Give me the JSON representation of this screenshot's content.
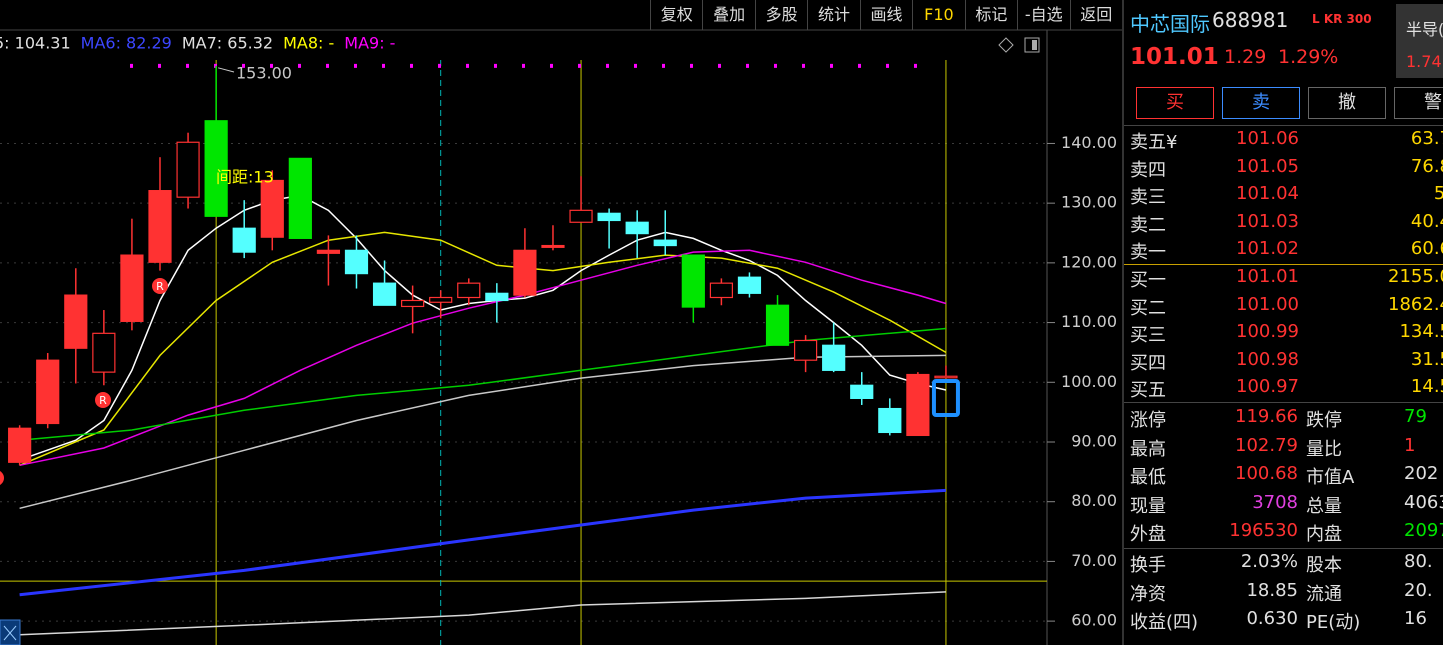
{
  "toolbar": [
    "复权",
    "叠加",
    "多股",
    "统计",
    "画线",
    "F10",
    "标记",
    "-自选",
    "返回"
  ],
  "ma_legend": [
    {
      "text": "5: 104.31",
      "color": "#e0e0e0"
    },
    {
      "text": "MA6: 82.29",
      "color": "#3c46ff"
    },
    {
      "text": "MA7: 65.32",
      "color": "#e0e0e0"
    },
    {
      "text": "MA8: -",
      "color": "#ffff00"
    },
    {
      "text": "MA9: -",
      "color": "#ff00ff"
    }
  ],
  "chart_data": {
    "type": "candlestick",
    "xlim": [
      -0.7,
      36.6
    ],
    "ylim": [
      56,
      159
    ],
    "yticks": [
      {
        "value": 140,
        "label": "140.00"
      },
      {
        "value": 130,
        "label": "130.00"
      },
      {
        "value": 120,
        "label": "120.00"
      },
      {
        "value": 110,
        "label": "110.00"
      },
      {
        "value": 100,
        "label": "100.00"
      },
      {
        "value": 90,
        "label": "90.00"
      },
      {
        "value": 80,
        "label": "80.00"
      },
      {
        "value": 70,
        "label": "70.00"
      },
      {
        "value": 60,
        "label": "60.00"
      }
    ],
    "grid": true,
    "candles": {
      "x": [
        0,
        1,
        2,
        3,
        4,
        5,
        6,
        7,
        8,
        9,
        10,
        11,
        12,
        13,
        14,
        15,
        16,
        17,
        18,
        19,
        20,
        21,
        22,
        23,
        24,
        25,
        26,
        27,
        28,
        29,
        30,
        31,
        32,
        33
      ],
      "open": [
        86.6,
        93.1,
        105.7,
        101.7,
        110.2,
        120.1,
        131.0,
        143.8,
        125.8,
        124.3,
        137.5,
        121.6,
        122.1,
        116.6,
        112.7,
        113.4,
        114.2,
        114.9,
        114.6,
        122.6,
        126.8,
        128.3,
        126.8,
        123.8,
        121.3,
        114.2,
        117.6,
        112.9,
        103.7,
        106.2,
        99.5,
        95.6,
        91.1,
        100.8
      ],
      "high": [
        92.8,
        104.9,
        119.1,
        112.1,
        127.4,
        137.7,
        141.8,
        153.0,
        130.5,
        135.5,
        137.5,
        124.6,
        124.6,
        120.4,
        116.2,
        115.4,
        117.4,
        116.6,
        125.8,
        126.3,
        134.5,
        129.1,
        128.8,
        128.8,
        121.3,
        117.4,
        118.4,
        114.6,
        107.9,
        110.0,
        101.7,
        97.3,
        101.7,
        102.79
      ],
      "low": [
        86.1,
        92.3,
        99.8,
        99.5,
        108.7,
        118.7,
        129.1,
        127.8,
        120.8,
        122.1,
        124.1,
        116.2,
        115.7,
        112.9,
        108.2,
        110.7,
        112.9,
        110.0,
        114.2,
        122.1,
        126.8,
        122.4,
        120.8,
        121.3,
        110.0,
        112.9,
        114.2,
        106.2,
        101.7,
        101.7,
        96.2,
        91.1,
        91.1,
        100.68
      ],
      "close": [
        92.3,
        103.7,
        114.6,
        108.2,
        121.3,
        132.1,
        140.2,
        127.8,
        121.8,
        133.8,
        124.1,
        122.1,
        118.2,
        112.9,
        113.7,
        114.2,
        116.6,
        113.7,
        122.1,
        122.9,
        128.8,
        127.1,
        124.9,
        122.9,
        112.6,
        116.6,
        114.9,
        106.2,
        107.0,
        102.0,
        97.3,
        91.6,
        101.3,
        101.01
      ],
      "color": [
        "#ff3232",
        "#ff3232",
        "#ff3232",
        "#ff3232",
        "#ff3232",
        "#ff3232",
        "#ff3232",
        "#00e600",
        "#54ffff",
        "#ff3232",
        "#00e600",
        "#ff3232",
        "#54ffff",
        "#54ffff",
        "#ff3232",
        "#ff3232",
        "#ff3232",
        "#54ffff",
        "#ff3232",
        "#ff3232",
        "#ff3232",
        "#54ffff",
        "#54ffff",
        "#54ffff",
        "#00e600",
        "#ff3232",
        "#54ffff",
        "#00e600",
        "#ff3232",
        "#54ffff",
        "#54ffff",
        "#54ffff",
        "#ff3232",
        "#ff3232"
      ],
      "hollow": [
        false,
        false,
        false,
        true,
        false,
        false,
        true,
        false,
        false,
        false,
        false,
        false,
        false,
        false,
        true,
        true,
        true,
        false,
        false,
        false,
        true,
        false,
        false,
        false,
        false,
        true,
        false,
        false,
        true,
        false,
        false,
        false,
        false,
        true
      ]
    },
    "lines": [
      {
        "color": "#ffffff",
        "x": [
          0,
          2,
          3,
          4,
          5,
          6,
          7,
          8,
          9,
          10,
          11,
          12,
          13,
          14,
          15,
          16,
          17,
          18,
          19,
          20,
          21,
          22,
          23,
          24,
          25,
          26,
          27,
          28,
          29,
          30,
          31,
          32,
          33
        ],
        "values": [
          87.0,
          90.3,
          93.6,
          102.0,
          113.7,
          122.1,
          125.8,
          128.8,
          130.5,
          131.3,
          128.8,
          124.1,
          118.7,
          114.6,
          112.1,
          113.2,
          113.7,
          114.1,
          115.4,
          118.7,
          121.3,
          123.8,
          125.1,
          124.1,
          122.1,
          120.4,
          117.9,
          113.7,
          110.0,
          106.2,
          101.2,
          99.8,
          98.7
        ]
      },
      {
        "color": "#e6e600",
        "x": [
          0,
          3,
          5,
          7,
          9,
          11,
          13,
          15,
          17,
          19,
          21,
          23,
          25,
          27,
          29,
          31,
          33
        ],
        "values": [
          86.1,
          92.0,
          104.5,
          113.7,
          120.1,
          123.8,
          125.1,
          123.8,
          119.6,
          118.7,
          120.1,
          121.3,
          120.8,
          119.1,
          115.1,
          110.4,
          105.0
        ]
      },
      {
        "color": "#e600e6",
        "x": [
          0,
          3,
          6,
          8,
          10,
          12,
          14,
          16,
          18,
          20,
          22,
          24,
          26,
          28,
          30,
          32,
          33
        ],
        "values": [
          86.1,
          89.0,
          94.5,
          97.3,
          102.0,
          106.2,
          109.9,
          112.4,
          114.6,
          117.1,
          119.6,
          121.8,
          122.1,
          120.1,
          117.1,
          114.6,
          113.2
        ]
      },
      {
        "color": "#00cc00",
        "x": [
          0,
          4,
          8,
          12,
          16,
          20,
          24,
          28,
          33
        ],
        "values": [
          90.3,
          92.0,
          95.3,
          97.8,
          99.5,
          102.0,
          104.5,
          107.0,
          109.0
        ]
      },
      {
        "color": "#c8c8c8",
        "x": [
          0,
          4,
          8,
          12,
          16,
          20,
          24,
          28,
          33
        ],
        "values": [
          78.9,
          83.6,
          88.6,
          93.6,
          97.8,
          100.7,
          102.8,
          104.2,
          104.5
        ]
      },
      {
        "color": "#2a35ff",
        "x": [
          0,
          8,
          16,
          20,
          24,
          28,
          33
        ],
        "values": [
          64.4,
          68.5,
          73.6,
          76.1,
          78.6,
          80.6,
          81.9
        ]
      },
      {
        "color": "#d8d8d8",
        "x": [
          0,
          8,
          16,
          20,
          28,
          33
        ],
        "values": [
          57.7,
          59.3,
          61.0,
          62.7,
          63.8,
          64.9
        ]
      }
    ],
    "hlines": [
      {
        "value": 66.7,
        "color": "#c8c800"
      }
    ],
    "vlines": [
      {
        "x": 7,
        "color": "#c8c800"
      },
      {
        "x": 15,
        "color": "#00b4b4",
        "dashed": true
      },
      {
        "x": 20,
        "color": "#c8c800"
      },
      {
        "x": 33,
        "color": "#c8c800"
      }
    ],
    "annotations": [
      {
        "text": "153.00",
        "color": "#c8c8c8"
      },
      {
        "text": "间距:13",
        "color": "#ffff00"
      }
    ],
    "marker_label": "R"
  },
  "quote": {
    "name": "中芯国际",
    "code": "688981",
    "badge": "L KR 300",
    "sector": "半导(",
    "price": "101.01",
    "change": "1.29",
    "change_pct": "1.29%",
    "sector_change": "1.74",
    "buttons": [
      "买",
      "卖",
      "撤",
      "警"
    ],
    "asks": [
      [
        "卖五¥",
        "101.06",
        "63.7"
      ],
      [
        "卖四",
        "101.05",
        "76.8"
      ],
      [
        "卖三",
        "101.04",
        "5."
      ],
      [
        "卖二",
        "101.03",
        "40.4"
      ],
      [
        "卖一",
        "101.02",
        "60.6"
      ]
    ],
    "bids": [
      [
        "买一",
        "101.01",
        "2155.0"
      ],
      [
        "买二",
        "101.00",
        "1862.4"
      ],
      [
        "买三",
        "100.99",
        "134.5"
      ],
      [
        "买四",
        "100.98",
        "31.5"
      ],
      [
        "买五",
        "100.97",
        "14.5"
      ]
    ],
    "stats": [
      [
        {
          "t": "涨停"
        },
        {
          "t": "119.66",
          "c": "#ff3232"
        },
        {
          "t": "跌停"
        },
        {
          "t": "79",
          "c": "#00e600"
        }
      ],
      [
        {
          "t": "最高"
        },
        {
          "t": "102.79",
          "c": "#ff3232"
        },
        {
          "t": "量比"
        },
        {
          "t": "1",
          "c": "#ff3232"
        }
      ],
      [
        {
          "t": "最低"
        },
        {
          "t": "100.68",
          "c": "#ff3232"
        },
        {
          "t": "市值A"
        },
        {
          "t": "202",
          "c": "#e0e0e0"
        }
      ],
      [
        {
          "t": "现量"
        },
        {
          "t": "3708",
          "c": "#e040e0"
        },
        {
          "t": "总量"
        },
        {
          "t": "4063",
          "c": "#e0e0e0"
        }
      ],
      [
        {
          "t": "外盘"
        },
        {
          "t": "196530",
          "c": "#ff3232"
        },
        {
          "t": "内盘"
        },
        {
          "t": "2097",
          "c": "#00e600"
        }
      ]
    ],
    "stats2": [
      [
        {
          "t": "换手"
        },
        {
          "t": "2.03%",
          "c": "#e0e0e0"
        },
        {
          "t": "股本"
        },
        {
          "t": "80.",
          "c": "#e0e0e0"
        }
      ],
      [
        {
          "t": "净资"
        },
        {
          "t": "18.85",
          "c": "#e0e0e0"
        },
        {
          "t": "流通"
        },
        {
          "t": "20.",
          "c": "#e0e0e0"
        }
      ],
      [
        {
          "t": "收益(四)"
        },
        {
          "t": "0.630",
          "c": "#e0e0e0"
        },
        {
          "t": "PE(动)"
        },
        {
          "t": "16",
          "c": "#e0e0e0"
        }
      ]
    ]
  }
}
